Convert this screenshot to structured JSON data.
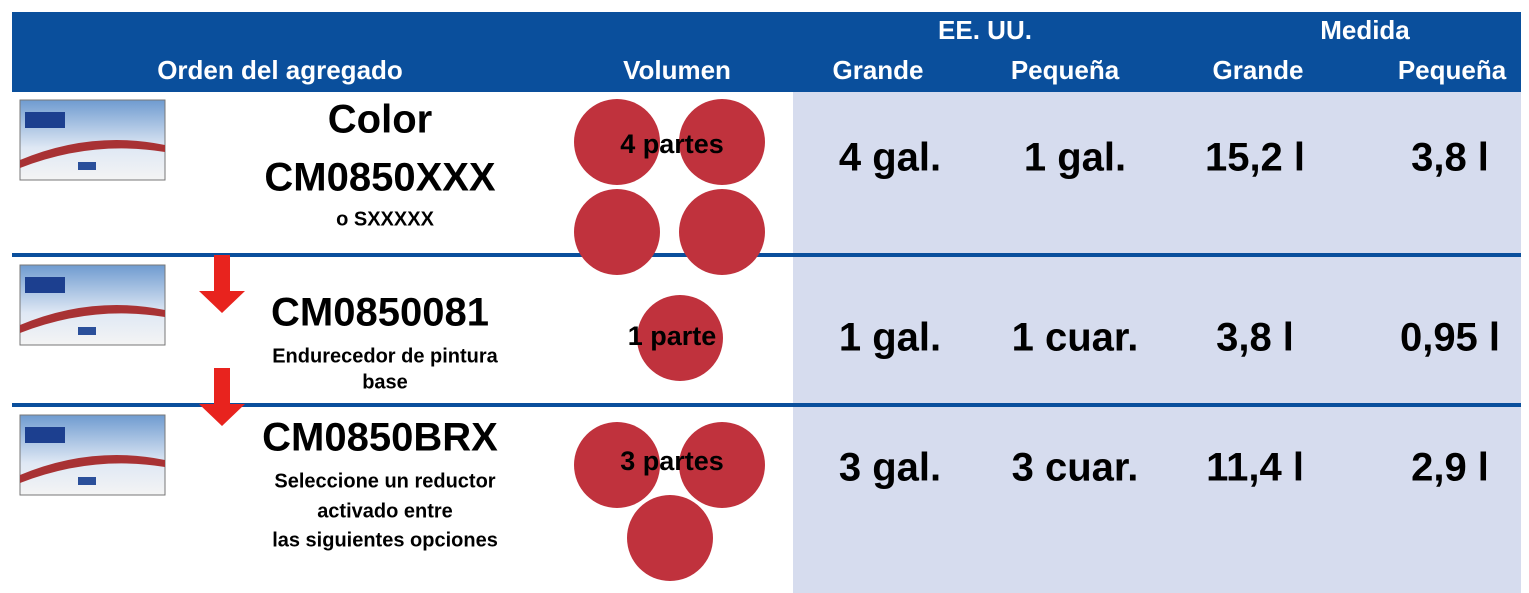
{
  "header": {
    "group_us": "EE. UU.",
    "group_metric": "Medida",
    "columns": [
      "Orden del agregado",
      "Volumen",
      "Grande",
      "Pequeña",
      "Grande",
      "Pequeña"
    ]
  },
  "rows": [
    {
      "title": [
        "Color",
        "CM0850XXX"
      ],
      "subtitle": [
        "o SXXXXX"
      ],
      "volume": "4 partes",
      "values": [
        "4 gal.",
        "1 gal.",
        "15,2 l",
        "3,8 l"
      ]
    },
    {
      "title": [
        "CM0850081"
      ],
      "subtitle": [
        "Endurecedor de pintura",
        "base"
      ],
      "volume": "1 parte",
      "values": [
        "1 gal.",
        "1 cuar.",
        "3,8 l",
        "0,95 l"
      ]
    },
    {
      "title": [
        "CM0850BRX"
      ],
      "subtitle": [
        "Seleccione un reductor",
        "activado entre",
        "las siguientes opciones"
      ],
      "volume": "3 partes",
      "values": [
        "3 gal.",
        "3 cuar.",
        "11,4 l",
        "2,9 l"
      ]
    }
  ]
}
